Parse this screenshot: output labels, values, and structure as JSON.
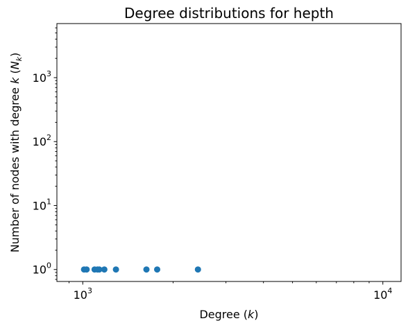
{
  "chart_data": {
    "type": "scatter",
    "title": "Degree distributions for hepth",
    "xlabel": "Degree ($k$)",
    "xlabel_main": "Degree (",
    "xlabel_var": "k",
    "xlabel_end": ")",
    "ylabel_main": "Number of nodes with degree ",
    "ylabel_var": "k",
    "ylabel_open": " (",
    "ylabel_N": "N",
    "ylabel_sub": "k",
    "ylabel_close": ")",
    "xscale": "log",
    "yscale": "log",
    "xlim": [
      820,
      11500
    ],
    "ylim": [
      0.65,
      7000
    ],
    "x_ticks": [
      {
        "value": 1000,
        "base": "10",
        "exp": "3"
      },
      {
        "value": 10000,
        "base": "10",
        "exp": "4"
      }
    ],
    "y_ticks": [
      {
        "value": 1,
        "base": "10",
        "exp": "0"
      },
      {
        "value": 10,
        "base": "10",
        "exp": "1"
      },
      {
        "value": 100,
        "base": "10",
        "exp": "2"
      },
      {
        "value": 1000,
        "base": "10",
        "exp": "3"
      }
    ],
    "grid": false,
    "marker_color": "#1f77b4",
    "points": [
      {
        "x": 1010,
        "y": 1
      },
      {
        "x": 1030,
        "y": 1
      },
      {
        "x": 1095,
        "y": 1
      },
      {
        "x": 1120,
        "y": 1
      },
      {
        "x": 1135,
        "y": 1
      },
      {
        "x": 1180,
        "y": 1
      },
      {
        "x": 1290,
        "y": 1
      },
      {
        "x": 1630,
        "y": 1
      },
      {
        "x": 1770,
        "y": 1
      },
      {
        "x": 2420,
        "y": 1
      }
    ]
  }
}
